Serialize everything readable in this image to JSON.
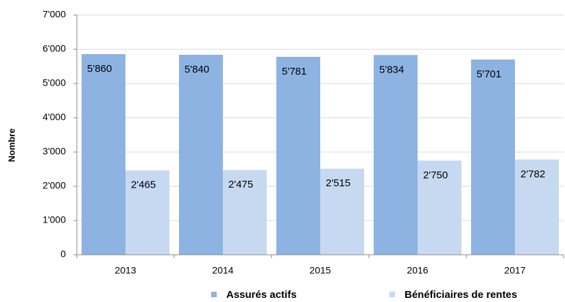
{
  "chart_data": {
    "type": "bar",
    "y_label": "Nombre",
    "categories": [
      "2013",
      "2014",
      "2015",
      "2016",
      "2017"
    ],
    "series": [
      {
        "name": "Assurés actifs",
        "color": "#8db3e2",
        "values": [
          5860,
          5840,
          5781,
          5834,
          5701
        ],
        "value_labels": [
          "5'860",
          "5'840",
          "5'781",
          "5'834",
          "5'701"
        ]
      },
      {
        "name": "Bénéficiaires de rentes",
        "color": "#c6d9f1",
        "values": [
          2465,
          2475,
          2515,
          2750,
          2782
        ],
        "value_labels": [
          "2'465",
          "2'475",
          "2'515",
          "2'750",
          "2'782"
        ]
      }
    ],
    "ylim": [
      0,
      7000
    ],
    "yticks": [
      0,
      {
        "value": 1000,
        "label": "1'000"
      },
      {
        "value": 2000,
        "label": "2'000"
      },
      {
        "value": 3000,
        "label": "3'000"
      },
      {
        "value": 4000,
        "label": "4'000"
      },
      {
        "value": 5000,
        "label": "5'000"
      },
      {
        "value": 6000,
        "label": "6'000"
      },
      {
        "value": 7000,
        "label": "7'000"
      }
    ],
    "grid": true
  }
}
